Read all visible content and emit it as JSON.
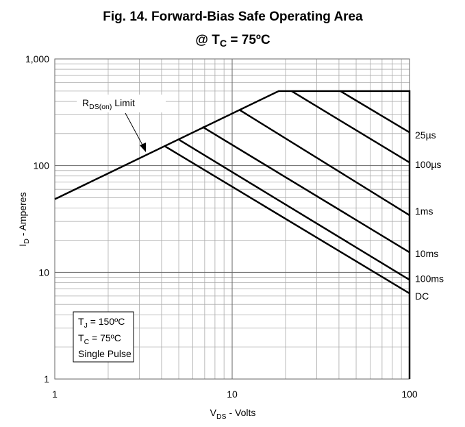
{
  "chart_data": {
    "type": "line",
    "title": "Fig. 14. Forward-Bias Safe Operating Area",
    "subtitle": [
      "@ T",
      "C",
      " = 75ºC"
    ],
    "x_label": [
      "V",
      "DS",
      " - Volts"
    ],
    "y_label": [
      "I",
      "D",
      " - Amperes"
    ],
    "limit_label": [
      "R",
      "DS(on)",
      " Limit"
    ],
    "conditions": [
      [
        "T",
        "J",
        " = 150ºC"
      ],
      [
        "T",
        "C",
        " = 75ºC"
      ],
      [
        "Single Pulse"
      ]
    ],
    "log_x": true,
    "log_y": true,
    "grid": true,
    "xlim": [
      1,
      100
    ],
    "ylim": [
      1,
      1000
    ],
    "xticks": [
      1,
      10,
      100
    ],
    "yticks": [
      1,
      10,
      100,
      {
        "value": 1000,
        "label": "1,000"
      }
    ],
    "series": [
      {
        "name": null,
        "color": "#000000",
        "x": [
          1,
          18.3,
          100,
          100
        ],
        "values": [
          48.5,
          500,
          500,
          1
        ]
      },
      {
        "name": "25µs",
        "color": "#000000",
        "x": [
          40.7,
          100
        ],
        "values": [
          500,
          205
        ]
      },
      {
        "name": "100µs",
        "color": "#000000",
        "x": [
          21.6,
          100
        ],
        "values": [
          500,
          107
        ]
      },
      {
        "name": "1ms",
        "color": "#000000",
        "x": [
          11.1,
          100
        ],
        "values": [
          330,
          34.3
        ]
      },
      {
        "name": "10ms",
        "color": "#000000",
        "x": [
          6.8,
          100
        ],
        "values": [
          231,
          15.4
        ]
      },
      {
        "name": "100ms",
        "color": "#000000",
        "x": [
          5.04,
          100
        ],
        "values": [
          174,
          8.5
        ]
      },
      {
        "name": "DC",
        "color": "#000000",
        "x": [
          4.15,
          100
        ],
        "values": [
          153,
          6.35
        ]
      }
    ]
  }
}
